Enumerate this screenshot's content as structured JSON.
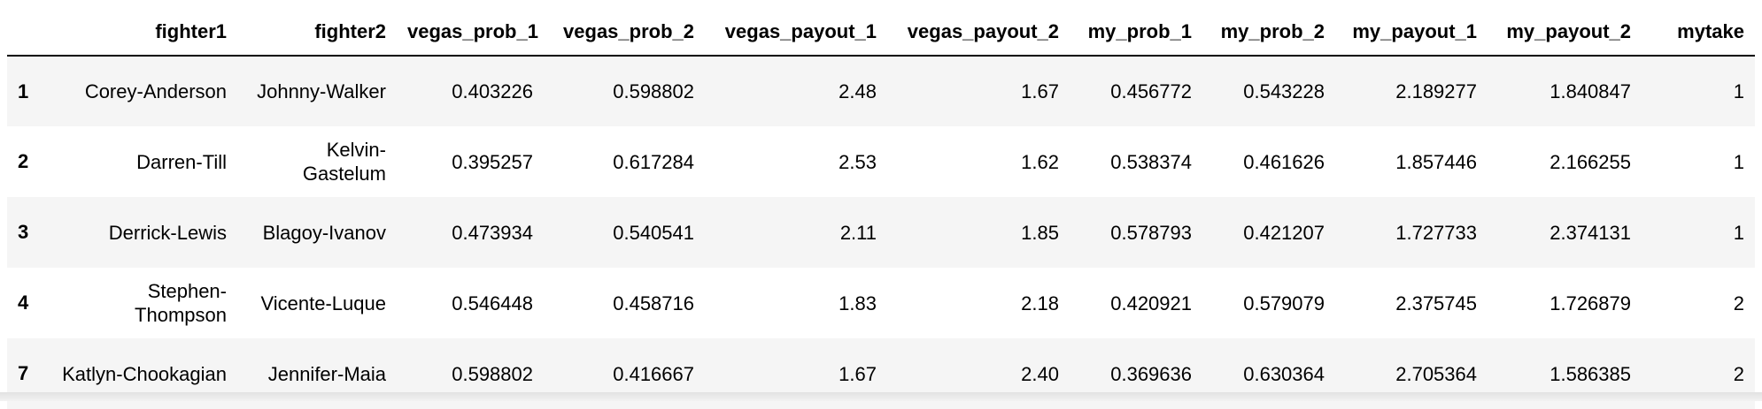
{
  "table": {
    "columns": [
      "",
      "fighter1",
      "fighter2",
      "vegas_prob_1",
      "vegas_prob_2",
      "vegas_payout_1",
      "vegas_payout_2",
      "my_prob_1",
      "my_prob_2",
      "my_payout_1",
      "my_payout_2",
      "mytake"
    ],
    "rows": [
      {
        "index": "1",
        "fighter1": "Corey-Anderson",
        "fighter2": "Johnny-Walker",
        "vegas_prob_1": "0.403226",
        "vegas_prob_2": "0.598802",
        "vegas_payout_1": "2.48",
        "vegas_payout_2": "1.67",
        "my_prob_1": "0.456772",
        "my_prob_2": "0.543228",
        "my_payout_1": "2.189277",
        "my_payout_2": "1.840847",
        "mytake": "1"
      },
      {
        "index": "2",
        "fighter1": "Darren-Till",
        "fighter2": "Kelvin-Gastelum",
        "vegas_prob_1": "0.395257",
        "vegas_prob_2": "0.617284",
        "vegas_payout_1": "2.53",
        "vegas_payout_2": "1.62",
        "my_prob_1": "0.538374",
        "my_prob_2": "0.461626",
        "my_payout_1": "1.857446",
        "my_payout_2": "2.166255",
        "mytake": "1"
      },
      {
        "index": "3",
        "fighter1": "Derrick-Lewis",
        "fighter2": "Blagoy-Ivanov",
        "vegas_prob_1": "0.473934",
        "vegas_prob_2": "0.540541",
        "vegas_payout_1": "2.11",
        "vegas_payout_2": "1.85",
        "my_prob_1": "0.578793",
        "my_prob_2": "0.421207",
        "my_payout_1": "1.727733",
        "my_payout_2": "2.374131",
        "mytake": "1"
      },
      {
        "index": "4",
        "fighter1": "Stephen-Thompson",
        "fighter2": "Vicente-Luque",
        "vegas_prob_1": "0.546448",
        "vegas_prob_2": "0.458716",
        "vegas_payout_1": "1.83",
        "vegas_payout_2": "2.18",
        "my_prob_1": "0.420921",
        "my_prob_2": "0.579079",
        "my_payout_1": "2.375745",
        "my_payout_2": "1.726879",
        "mytake": "2"
      },
      {
        "index": "7",
        "fighter1": "Katlyn-Chookagian",
        "fighter2": "Jennifer-Maia",
        "vegas_prob_1": "0.598802",
        "vegas_prob_2": "0.416667",
        "vegas_payout_1": "1.67",
        "vegas_payout_2": "2.40",
        "my_prob_1": "0.369636",
        "my_prob_2": "0.630364",
        "my_payout_1": "2.705364",
        "my_payout_2": "1.586385",
        "mytake": "2"
      }
    ]
  }
}
